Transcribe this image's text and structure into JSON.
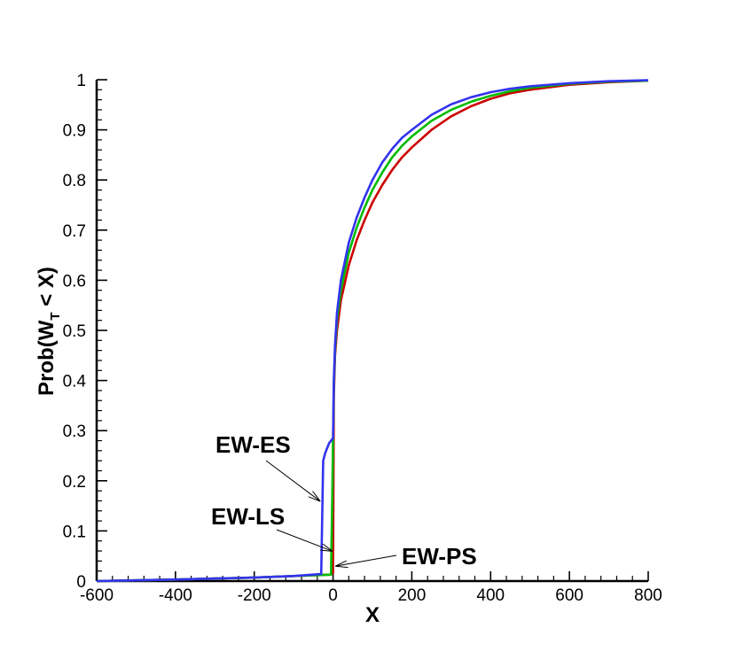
{
  "chart_data": {
    "type": "line",
    "title": "",
    "xlabel": "X",
    "ylabel_main": "Prob(W",
    "ylabel_sub": "T",
    "ylabel_tail": " < X)",
    "xlim": [
      -600,
      800
    ],
    "ylim": [
      0,
      1
    ],
    "x_ticks": [
      -600,
      -400,
      -200,
      0,
      200,
      400,
      600,
      800
    ],
    "x_tick_labels": [
      "-600",
      "-400",
      "-200",
      "0",
      "200",
      "400",
      "600",
      "800"
    ],
    "y_ticks": [
      0,
      0.1,
      0.2,
      0.3,
      0.4,
      0.5,
      0.6,
      0.7,
      0.8,
      0.9,
      1
    ],
    "y_tick_labels": [
      "0",
      "0.1",
      "0.2",
      "0.3",
      "0.4",
      "0.5",
      "0.6",
      "0.7",
      "0.8",
      "0.9",
      "1"
    ],
    "grid": false,
    "legend": "none",
    "series": [
      {
        "name": "EW-PS",
        "color": "#cc0000",
        "x": [
          -600,
          -400,
          -200,
          -100,
          -30,
          -5,
          0,
          2,
          5,
          10,
          20,
          40,
          60,
          80,
          100,
          125,
          150,
          175,
          200,
          250,
          300,
          350,
          400,
          450,
          500,
          600,
          700,
          800
        ],
        "y": [
          0,
          0.003,
          0.007,
          0.01,
          0.012,
          0.013,
          0.015,
          0.37,
          0.45,
          0.5,
          0.56,
          0.63,
          0.68,
          0.72,
          0.755,
          0.79,
          0.82,
          0.845,
          0.865,
          0.9,
          0.927,
          0.947,
          0.962,
          0.973,
          0.98,
          0.99,
          0.995,
          0.998
        ]
      },
      {
        "name": "EW-LS",
        "color": "#00bb00",
        "x": [
          -600,
          -400,
          -200,
          -100,
          -30,
          -5,
          -4,
          -2,
          0,
          2,
          5,
          10,
          20,
          40,
          60,
          80,
          100,
          125,
          150,
          175,
          200,
          250,
          300,
          350,
          400,
          450,
          500,
          600,
          700,
          800
        ],
        "y": [
          0,
          0.003,
          0.007,
          0.01,
          0.012,
          0.013,
          0.07,
          0.16,
          0.28,
          0.39,
          0.46,
          0.52,
          0.58,
          0.655,
          0.705,
          0.745,
          0.78,
          0.815,
          0.845,
          0.868,
          0.887,
          0.918,
          0.94,
          0.956,
          0.968,
          0.977,
          0.984,
          0.992,
          0.996,
          0.998
        ]
      },
      {
        "name": "EW-ES",
        "color": "#3333ee",
        "x": [
          -600,
          -400,
          -200,
          -100,
          -30,
          -25,
          -20,
          -15,
          -10,
          -5,
          0,
          2,
          5,
          10,
          20,
          40,
          60,
          80,
          100,
          125,
          150,
          175,
          200,
          250,
          300,
          350,
          400,
          450,
          500,
          600,
          700,
          800
        ],
        "y": [
          0,
          0.003,
          0.007,
          0.01,
          0.014,
          0.24,
          0.255,
          0.265,
          0.275,
          0.28,
          0.285,
          0.4,
          0.47,
          0.535,
          0.6,
          0.675,
          0.725,
          0.765,
          0.8,
          0.835,
          0.862,
          0.884,
          0.9,
          0.93,
          0.951,
          0.965,
          0.975,
          0.982,
          0.987,
          0.993,
          0.997,
          0.999
        ]
      }
    ],
    "annotations": [
      {
        "text": "EW-ES",
        "series": "EW-ES"
      },
      {
        "text": "EW-LS",
        "series": "EW-LS"
      },
      {
        "text": "EW-PS",
        "series": "EW-PS"
      }
    ]
  }
}
